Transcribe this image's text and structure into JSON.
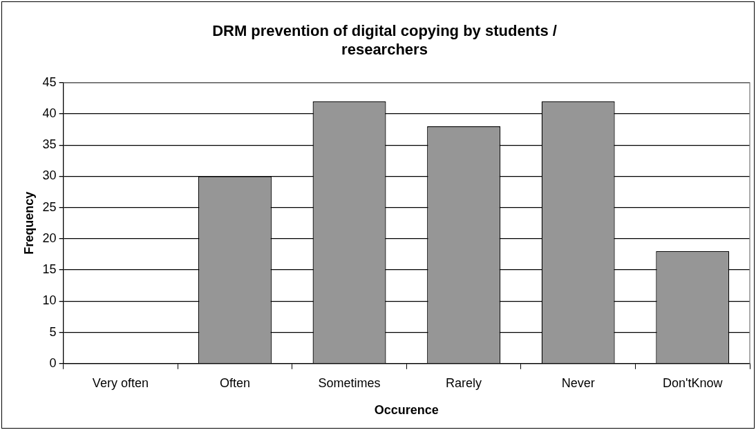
{
  "chart_data": {
    "type": "bar",
    "title": "DRM prevention of digital copying by students / researchers",
    "xlabel": "Occurence",
    "ylabel": "Frequency",
    "categories": [
      "Very often",
      "Often",
      "Sometimes",
      "Rarely",
      "Never",
      "Don'tKnow"
    ],
    "values": [
      0,
      30,
      42,
      38,
      42,
      18
    ],
    "color": "#969696",
    "ylim": [
      0,
      45
    ],
    "yticks": [
      0,
      5,
      10,
      15,
      20,
      25,
      30,
      35,
      40,
      45
    ],
    "grid": "y",
    "legend": false
  }
}
